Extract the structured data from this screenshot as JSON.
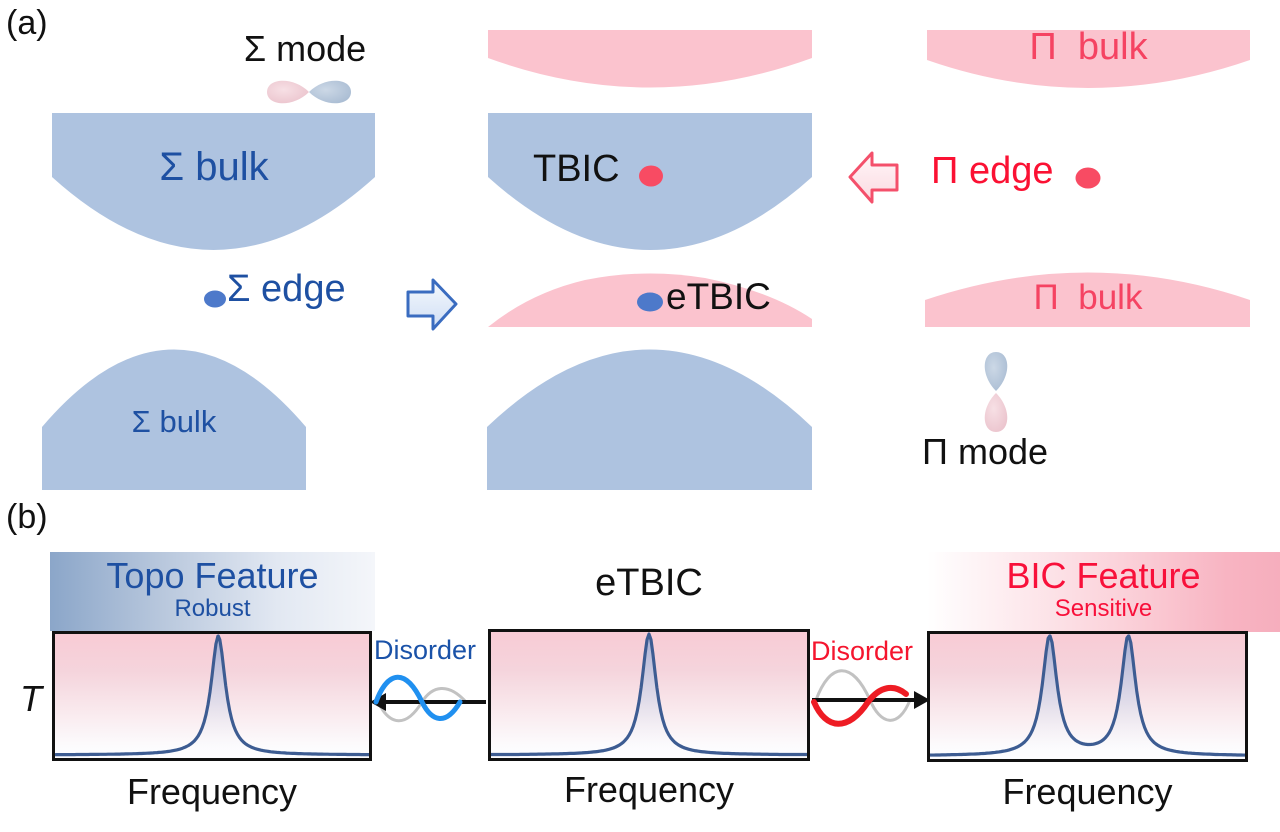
{
  "figure": {
    "panel_a": {
      "label": "(a)",
      "labels": {
        "sigma_mode": "Σ mode",
        "sigma_bulk_upper": "Σ bulk",
        "sigma_bulk_lower": "Σ bulk",
        "sigma_edge": "Σ edge",
        "tbic": "TBIC",
        "etbic": "eTBIC",
        "pi_bulk_upper": "Π  bulk",
        "pi_bulk_lower": "Π  bulk",
        "pi_edge": "Π edge",
        "pi_mode": "Π mode"
      },
      "icons": {
        "sigma_mode_orbital": "horizontal-bowtie-orbital",
        "pi_mode_orbital": "vertical-dumbbell-orbital",
        "sigma_edge_dot": "blue-ellipse",
        "etbic_dot": "blue-ellipse",
        "tbic_dot": "red-ellipse",
        "pi_edge_dot": "red-ellipse",
        "blue_block_arrow": "right-arrow",
        "pink_block_arrow": "left-arrow"
      }
    },
    "panel_b": {
      "label": "(b)",
      "ylabel": "T",
      "disorder_left": "Disorder",
      "disorder_right": "Disorder",
      "spectra": {
        "left": {
          "title": "Topo Feature",
          "subtitle": "Robust",
          "xlabel": "Frequency",
          "peaks": [
            0.52
          ],
          "gamma": 0.028
        },
        "center": {
          "title": "eTBIC",
          "xlabel": "Frequency",
          "peaks": [
            0.5
          ],
          "gamma": 0.028
        },
        "right": {
          "title": "BIC Feature",
          "subtitle": "Sensitive",
          "xlabel": "Frequency",
          "peaks": [
            0.38,
            0.63
          ],
          "gamma": 0.028
        }
      }
    },
    "colors": {
      "sigma_fill": "#aec3e0",
      "pi_fill": "#fbc3ce",
      "sigma_text": "#1e50a2",
      "pi_text": "#f54362",
      "red_accent": "#fb1133",
      "blue_dot": "#4d79ca",
      "red_dot": "#f84b63",
      "curve": "#3d5c92",
      "disorder_blue_wave": "#2090f0",
      "disorder_red_wave": "#ee1c24",
      "box_top_pink": "#f8cbd5"
    }
  }
}
